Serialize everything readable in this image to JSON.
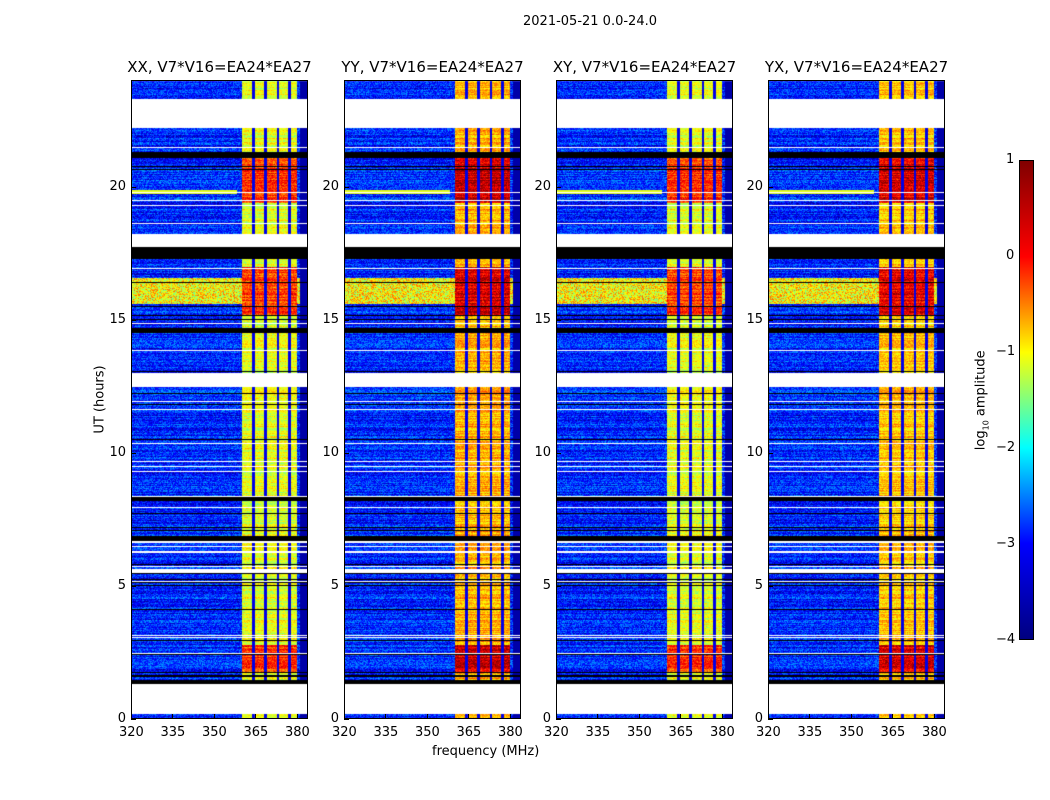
{
  "chart_data": {
    "type": "heatmap",
    "title": "2021-05-21 0.0-24.0",
    "xlabel": "frequency (MHz)",
    "ylabel": "UT (hours)",
    "xlim": [
      320,
      384
    ],
    "ylim": [
      0,
      24
    ],
    "xticks": [
      "320",
      "335",
      "350",
      "365",
      "380"
    ],
    "yticks": [
      "0",
      "5",
      "10",
      "15",
      "20"
    ],
    "panels": [
      {
        "title": "XX, V7*V16=EA24*EA27",
        "band_level": -1.0
      },
      {
        "title": "YY, V7*V16=EA24*EA27",
        "band_level": -0.5
      },
      {
        "title": "XY, V7*V16=EA24*EA27",
        "band_level": -1.0
      },
      {
        "title": "YX, V7*V16=EA24*EA27",
        "band_level": -0.6
      }
    ],
    "background_level": -3.2,
    "rfi_band_mhz": [
      360,
      380
    ],
    "band_channel_gaps_mhz": [
      364,
      368.5,
      373,
      377
    ],
    "strong_rfi_hours": [
      [
        15.2,
        17.0
      ],
      [
        19.4,
        21.1
      ],
      [
        1.8,
        2.8
      ]
    ],
    "no_data_hours": [
      [
        0.2,
        1.35
      ],
      [
        5.5,
        5.65
      ],
      [
        6.62,
        6.72
      ],
      [
        12.5,
        13.0
      ],
      [
        17.75,
        18.25
      ],
      [
        22.2,
        23.3
      ]
    ],
    "flagged_hours": [
      [
        1.35,
        1.5
      ],
      [
        17.3,
        17.75
      ],
      [
        21.1,
        21.3
      ],
      [
        14.5,
        14.7
      ],
      [
        8.2,
        8.35
      ],
      [
        6.7,
        6.9
      ]
    ],
    "colorbar": {
      "label": "log10 amplitude",
      "label_main": "log",
      "label_sub": "10",
      "label_rest": " amplitude",
      "ticks": [
        "1",
        "0",
        "−1",
        "−2",
        "−3",
        "−4"
      ],
      "range": [
        -4,
        1
      ],
      "colormap": "jet"
    }
  }
}
